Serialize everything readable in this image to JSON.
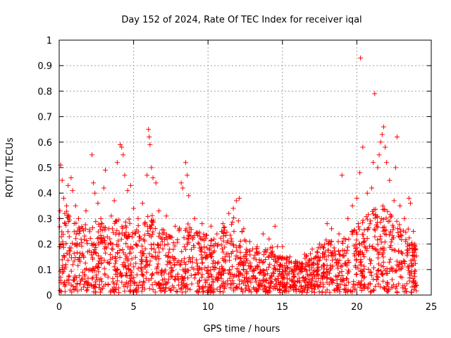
{
  "chart_data": {
    "type": "scatter",
    "title": "Day 152 of 2024, Rate Of TEC Index for receiver iqal",
    "xlabel": "GPS time / hours",
    "ylabel": "ROTI / TECUs",
    "xlim": [
      0,
      25
    ],
    "ylim": [
      0,
      1
    ],
    "xticks": [
      0,
      5,
      10,
      15,
      20,
      25
    ],
    "xtick_labels": [
      "0",
      "5",
      "10",
      "15",
      "20",
      "25"
    ],
    "yticks": [
      0,
      0.1,
      0.2,
      0.3,
      0.4,
      0.5,
      0.6,
      0.7,
      0.8,
      0.9,
      1
    ],
    "ytick_labels": [
      "0",
      "0.1",
      "0.2",
      "0.3",
      "0.4",
      "0.5",
      "0.6",
      "0.7",
      "0.8",
      "0.9",
      "1"
    ],
    "grid": true,
    "marker": "+",
    "marker_color": "#ff0000",
    "series": [
      {
        "points": [
          [
            0.05,
            0.33
          ],
          [
            0.1,
            0.51
          ],
          [
            0.2,
            0.45
          ],
          [
            0.3,
            0.38
          ],
          [
            0.5,
            0.35
          ],
          [
            0.6,
            0.43
          ],
          [
            0.8,
            0.46
          ],
          [
            0.9,
            0.41
          ],
          [
            1.1,
            0.35
          ],
          [
            1.3,
            0.3
          ],
          [
            1.8,
            0.33
          ],
          [
            2.2,
            0.55
          ],
          [
            2.3,
            0.44
          ],
          [
            2.4,
            0.4
          ],
          [
            2.6,
            0.36
          ],
          [
            2.8,
            0.3
          ],
          [
            3.0,
            0.42
          ],
          [
            3.1,
            0.49
          ],
          [
            3.5,
            0.31
          ],
          [
            3.7,
            0.37
          ],
          [
            3.9,
            0.52
          ],
          [
            4.1,
            0.59
          ],
          [
            4.2,
            0.58
          ],
          [
            4.3,
            0.55
          ],
          [
            4.4,
            0.47
          ],
          [
            4.6,
            0.41
          ],
          [
            4.8,
            0.43
          ],
          [
            5.0,
            0.34
          ],
          [
            5.3,
            0.3
          ],
          [
            5.6,
            0.36
          ],
          [
            5.9,
            0.47
          ],
          [
            6.0,
            0.65
          ],
          [
            6.05,
            0.62
          ],
          [
            6.1,
            0.59
          ],
          [
            6.2,
            0.5
          ],
          [
            6.3,
            0.46
          ],
          [
            6.5,
            0.44
          ],
          [
            6.7,
            0.33
          ],
          [
            7.2,
            0.31
          ],
          [
            7.8,
            0.27
          ],
          [
            8.2,
            0.44
          ],
          [
            8.3,
            0.42
          ],
          [
            8.5,
            0.52
          ],
          [
            8.6,
            0.47
          ],
          [
            8.7,
            0.39
          ],
          [
            9.1,
            0.3
          ],
          [
            9.6,
            0.28
          ],
          [
            10.2,
            0.27
          ],
          [
            10.6,
            0.24
          ],
          [
            11.0,
            0.28
          ],
          [
            11.4,
            0.32
          ],
          [
            11.7,
            0.34
          ],
          [
            11.9,
            0.37
          ],
          [
            12.1,
            0.38
          ],
          [
            12.4,
            0.26
          ],
          [
            12.8,
            0.21
          ],
          [
            13.3,
            0.19
          ],
          [
            13.7,
            0.24
          ],
          [
            14.1,
            0.22
          ],
          [
            14.5,
            0.27
          ],
          [
            15.0,
            0.19
          ],
          [
            15.5,
            0.15
          ],
          [
            16.0,
            0.13
          ],
          [
            16.5,
            0.16
          ],
          [
            17.0,
            0.18
          ],
          [
            17.5,
            0.2
          ],
          [
            18.0,
            0.28
          ],
          [
            18.3,
            0.26
          ],
          [
            18.8,
            0.24
          ],
          [
            19.0,
            0.47
          ],
          [
            19.4,
            0.3
          ],
          [
            19.7,
            0.35
          ],
          [
            20.0,
            0.38
          ],
          [
            20.2,
            0.48
          ],
          [
            20.25,
            0.93
          ],
          [
            20.4,
            0.58
          ],
          [
            20.7,
            0.4
          ],
          [
            21.0,
            0.42
          ],
          [
            21.1,
            0.52
          ],
          [
            21.2,
            0.79
          ],
          [
            21.4,
            0.5
          ],
          [
            21.5,
            0.55
          ],
          [
            21.6,
            0.6
          ],
          [
            21.7,
            0.63
          ],
          [
            21.8,
            0.66
          ],
          [
            21.9,
            0.58
          ],
          [
            22.0,
            0.52
          ],
          [
            22.2,
            0.45
          ],
          [
            22.5,
            0.37
          ],
          [
            22.6,
            0.5
          ],
          [
            22.7,
            0.62
          ],
          [
            22.9,
            0.35
          ],
          [
            23.2,
            0.3
          ],
          [
            23.5,
            0.38
          ],
          [
            23.6,
            0.36
          ],
          [
            23.8,
            0.25
          ],
          [
            23.9,
            0.2
          ]
        ]
      }
    ],
    "dense_band": {
      "description": "dense cloud of measurements between the profile below and ~0.01",
      "x": [
        0,
        0.5,
        1,
        1.5,
        2,
        2.5,
        3,
        3.5,
        4,
        4.5,
        5,
        5.5,
        6,
        6.5,
        7,
        7.5,
        8,
        8.5,
        9,
        9.5,
        10,
        10.5,
        11,
        11.5,
        12,
        12.5,
        13,
        13.5,
        14,
        14.5,
        15,
        15.5,
        16,
        16.5,
        17,
        17.5,
        18,
        18.5,
        19,
        19.5,
        20,
        20.5,
        21,
        21.5,
        22,
        22.5,
        23,
        23.5,
        24
      ],
      "upper": [
        0.3,
        0.33,
        0.3,
        0.28,
        0.29,
        0.3,
        0.28,
        0.29,
        0.3,
        0.31,
        0.28,
        0.27,
        0.33,
        0.3,
        0.27,
        0.26,
        0.27,
        0.29,
        0.27,
        0.25,
        0.24,
        0.23,
        0.26,
        0.3,
        0.32,
        0.22,
        0.2,
        0.19,
        0.18,
        0.2,
        0.17,
        0.14,
        0.13,
        0.15,
        0.17,
        0.19,
        0.22,
        0.21,
        0.22,
        0.26,
        0.28,
        0.3,
        0.33,
        0.36,
        0.34,
        0.3,
        0.28,
        0.26,
        0.18
      ]
    }
  }
}
